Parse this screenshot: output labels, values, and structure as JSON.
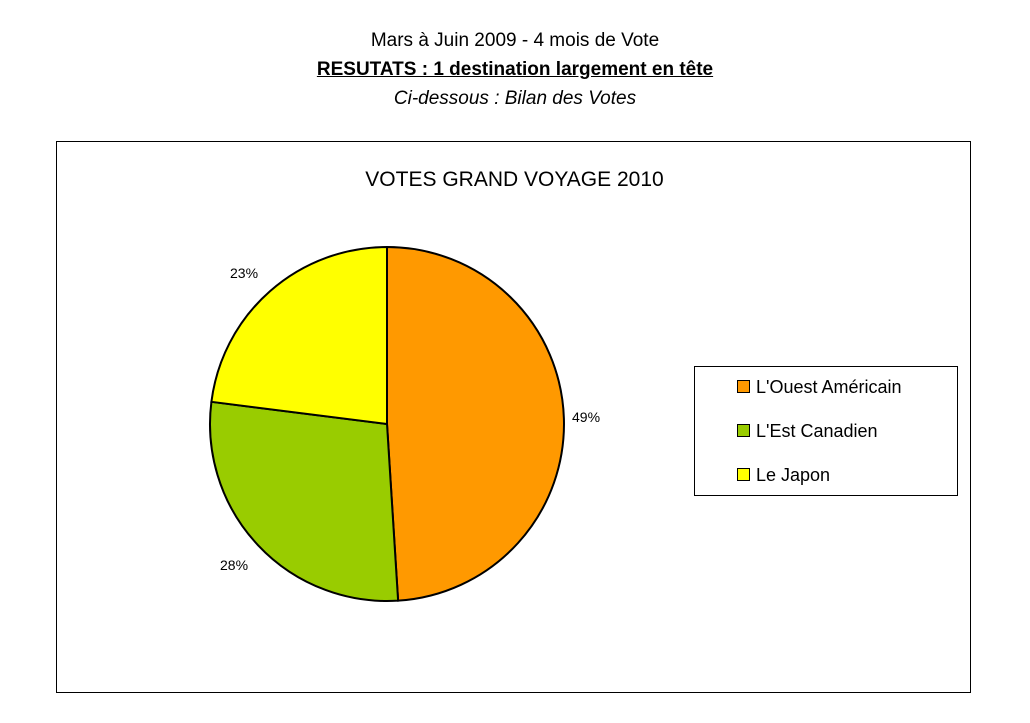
{
  "header": {
    "line1": "Mars à Juin 2009 - 4 mois de Vote",
    "line2": "RESUTATS : 1 destination largement en tête",
    "line3": "Ci-dessous : Bilan des Votes"
  },
  "chart_data": {
    "type": "pie",
    "title": "VOTES GRAND VOYAGE 2010",
    "legend_position": "right",
    "slices": [
      {
        "label": "L'Ouest Américain",
        "value": 49,
        "display": "49%",
        "color": "#FF9900"
      },
      {
        "label": "L'Est Canadien",
        "value": 28,
        "display": "28%",
        "color": "#99CC00"
      },
      {
        "label": "Le Japon",
        "value": 23,
        "display": "23%",
        "color": "#FFFF00"
      }
    ]
  }
}
